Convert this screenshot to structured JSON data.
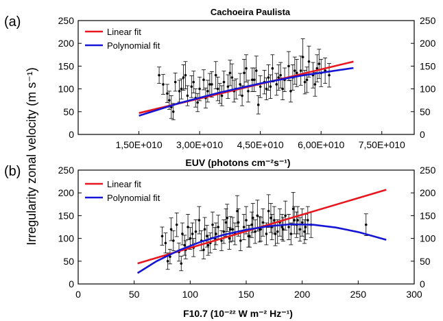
{
  "figure": {
    "title": "Cachoeira Paulista",
    "shared_ylabel": "Irregularity zonal velocity (m s⁻¹)"
  },
  "colors": {
    "linear": "#e8171f",
    "polynomial": "#1515d6",
    "points": "#000000"
  },
  "chart_data": [
    {
      "type": "scatter",
      "panel_label": "(a)",
      "title": "Cachoeira Paulista",
      "xlabel": "EUV (photons cm⁻²s⁻¹)",
      "ylabel": "Irregularity zonal velocity (m s⁻¹)",
      "xlim": [
        0,
        83000000000.0
      ],
      "ylim": [
        0,
        250
      ],
      "xticks": [
        15000000000.0,
        30000000000.0,
        45000000000.0,
        60000000000.0,
        75000000000.0
      ],
      "xtick_labels": [
        "1,50E+010",
        "3,00E+010",
        "4,50E+010",
        "6,00E+010",
        "7,50E+010"
      ],
      "yticks": [
        0,
        50,
        100,
        150,
        200,
        250
      ],
      "ytick_labels": [
        "0",
        "50",
        "100",
        "150",
        "200",
        "250"
      ],
      "grid": false,
      "legend_position": "top-left",
      "legend": [
        {
          "name": "Linear fit",
          "color": "#e8171f"
        },
        {
          "name": "Polynomial fit",
          "color": "#1515d6"
        }
      ],
      "fits": [
        {
          "name": "Linear fit",
          "x": [
            15000000000.0,
            68000000000.0
          ],
          "y": [
            47,
            160
          ]
        },
        {
          "name": "Polynomial fit",
          "x": [
            15000000000.0,
            25000000000.0,
            35000000000.0,
            45000000000.0,
            55000000000.0,
            68000000000.0
          ],
          "y": [
            41,
            69,
            92,
            112,
            129,
            146
          ]
        }
      ],
      "points": {
        "x": [
          20000000000.0,
          21000000000.0,
          22000000000.0,
          23000000000.0,
          24000000000.0,
          25000000000.0,
          26000000000.0,
          27000000000.0,
          28000000000.0,
          29000000000.0,
          30000000000.0,
          31000000000.0,
          32000000000.0,
          33000000000.0,
          34000000000.0,
          35000000000.0,
          36000000000.0,
          37000000000.0,
          38000000000.0,
          39000000000.0,
          40000000000.0,
          41000000000.0,
          42000000000.0,
          43000000000.0,
          44000000000.0,
          45000000000.0,
          46000000000.0,
          47000000000.0,
          48000000000.0,
          49000000000.0,
          50000000000.0,
          51000000000.0,
          52000000000.0,
          53000000000.0,
          54000000000.0,
          55000000000.0,
          56000000000.0,
          57000000000.0,
          58000000000.0,
          59000000000.0,
          60000000000.0,
          61000000000.0,
          62000000000.0,
          22500000000.0,
          25500000000.0,
          28500000000.0,
          31500000000.0,
          34500000000.0,
          37500000000.0,
          40500000000.0,
          43500000000.0,
          46500000000.0,
          49500000000.0,
          52500000000.0,
          55500000000.0,
          58500000000.0,
          23500000000.0,
          26500000000.0,
          29500000000.0,
          32500000000.0,
          35500000000.0,
          38500000000.0,
          41500000000.0,
          44500000000.0,
          47500000000.0,
          50500000000.0,
          53500000000.0,
          56500000000.0,
          59500000000.0
        ],
        "y": [
          130,
          110,
          90,
          60,
          115,
          95,
          125,
          85,
          105,
          80,
          100,
          120,
          95,
          110,
          130,
          90,
          115,
          105,
          125,
          100,
          110,
          135,
          95,
          120,
          140,
          105,
          115,
          125,
          145,
          110,
          130,
          120,
          150,
          125,
          135,
          140,
          115,
          160,
          130,
          145,
          135,
          140,
          130,
          75,
          100,
          115,
          80,
          100,
          135,
          85,
          120,
          100,
          125,
          95,
          170,
          110,
          50,
          130,
          70,
          110,
          85,
          95,
          145,
          65,
          105,
          100,
          140,
          120,
          155
        ],
        "err": [
          18,
          22,
          20,
          25,
          20,
          24,
          28,
          22,
          24,
          20,
          26,
          22,
          24,
          28,
          30,
          22,
          24,
          26,
          30,
          22,
          24,
          30,
          24,
          26,
          32,
          24,
          26,
          28,
          30,
          24,
          28,
          26,
          32,
          28,
          30,
          32,
          26,
          34,
          28,
          30,
          30,
          28,
          26,
          20,
          22,
          24,
          22,
          26,
          28,
          22,
          26,
          24,
          28,
          24,
          40,
          26,
          18,
          30,
          20,
          24,
          22,
          24,
          30,
          20,
          26,
          24,
          30,
          28,
          32
        ]
      }
    },
    {
      "type": "scatter",
      "panel_label": "(b)",
      "xlabel": "F10.7 (10⁻²² W m⁻² Hz⁻¹)",
      "ylabel": "Irregularity zonal velocity (m s⁻¹)",
      "xlim": [
        0,
        300
      ],
      "ylim": [
        0,
        250
      ],
      "xticks": [
        0,
        50,
        100,
        150,
        200,
        250,
        300
      ],
      "xtick_labels": [
        "0",
        "50",
        "100",
        "150",
        "200",
        "250",
        "300"
      ],
      "yticks": [
        0,
        50,
        100,
        150,
        200,
        250
      ],
      "ytick_labels": [
        "0",
        "50",
        "100",
        "150",
        "200",
        "250"
      ],
      "grid": false,
      "legend_position": "top-left",
      "legend": [
        {
          "name": "Linear fit",
          "color": "#e8171f"
        },
        {
          "name": "Polynomial fit",
          "color": "#1515d6"
        }
      ],
      "fits": [
        {
          "name": "Linear fit",
          "x": [
            53,
            275
          ],
          "y": [
            45,
            207
          ]
        },
        {
          "name": "Polynomial fit",
          "x": [
            53,
            70,
            90,
            110,
            130,
            150,
            170,
            190,
            210,
            230,
            250,
            275
          ],
          "y": [
            24,
            50,
            74,
            93,
            108,
            119,
            127,
            131,
            130,
            124,
            114,
            97
          ]
        }
      ],
      "points": {
        "x": [
          75,
          78,
          80,
          83,
          85,
          88,
          90,
          93,
          95,
          98,
          100,
          103,
          105,
          108,
          110,
          113,
          115,
          118,
          120,
          123,
          125,
          128,
          130,
          133,
          135,
          138,
          140,
          143,
          145,
          148,
          150,
          153,
          155,
          158,
          160,
          163,
          165,
          168,
          170,
          173,
          175,
          178,
          180,
          183,
          185,
          188,
          190,
          193,
          195,
          198,
          200,
          203,
          205,
          208,
          257,
          82,
          92,
          102,
          112,
          122,
          132,
          142,
          152,
          162,
          172,
          182,
          192,
          202,
          96,
          116,
          136,
          156,
          176,
          196
        ],
        "y": [
          105,
          90,
          50,
          120,
          95,
          130,
          70,
          110,
          85,
          125,
          100,
          80,
          115,
          140,
          95,
          120,
          105,
          90,
          130,
          110,
          125,
          95,
          115,
          145,
          100,
          120,
          110,
          135,
          95,
          125,
          140,
          105,
          130,
          115,
          150,
          120,
          135,
          110,
          160,
          125,
          140,
          115,
          135,
          120,
          150,
          125,
          110,
          140,
          130,
          120,
          135,
          125,
          140,
          130,
          130,
          60,
          45,
          110,
          75,
          100,
          135,
          160,
          105,
          120,
          145,
          125,
          165,
          115,
          75,
          85,
          120,
          145,
          110,
          140
        ],
        "err": [
          20,
          22,
          18,
          25,
          22,
          26,
          20,
          24,
          22,
          28,
          24,
          20,
          26,
          30,
          22,
          26,
          24,
          22,
          28,
          24,
          26,
          22,
          26,
          30,
          24,
          26,
          24,
          30,
          22,
          28,
          30,
          24,
          28,
          26,
          34,
          26,
          30,
          24,
          36,
          28,
          30,
          26,
          30,
          26,
          32,
          28,
          24,
          30,
          28,
          26,
          30,
          28,
          30,
          28,
          24,
          16,
          16,
          24,
          20,
          24,
          30,
          34,
          24,
          28,
          32,
          28,
          36,
          26,
          20,
          22,
          28,
          32,
          26,
          30
        ]
      }
    }
  ]
}
